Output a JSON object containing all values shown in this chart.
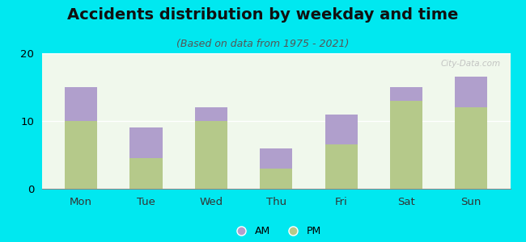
{
  "title": "Accidents distribution by weekday and time",
  "subtitle": "(Based on data from 1975 - 2021)",
  "categories": [
    "Mon",
    "Tue",
    "Wed",
    "Thu",
    "Fri",
    "Sat",
    "Sun"
  ],
  "pm_values": [
    10,
    4.5,
    10,
    3,
    6.5,
    13,
    12
  ],
  "am_values": [
    5,
    4.5,
    2,
    3,
    4.5,
    2,
    4.5
  ],
  "pm_color": "#b5c98a",
  "am_color": "#b09fcc",
  "bg_color": "#00e8f0",
  "plot_bg": "#eaf4e0",
  "ylim": [
    0,
    20
  ],
  "yticks": [
    0,
    10,
    20
  ],
  "watermark": "City-Data.com",
  "bar_width": 0.5,
  "title_fontsize": 14,
  "subtitle_fontsize": 9
}
